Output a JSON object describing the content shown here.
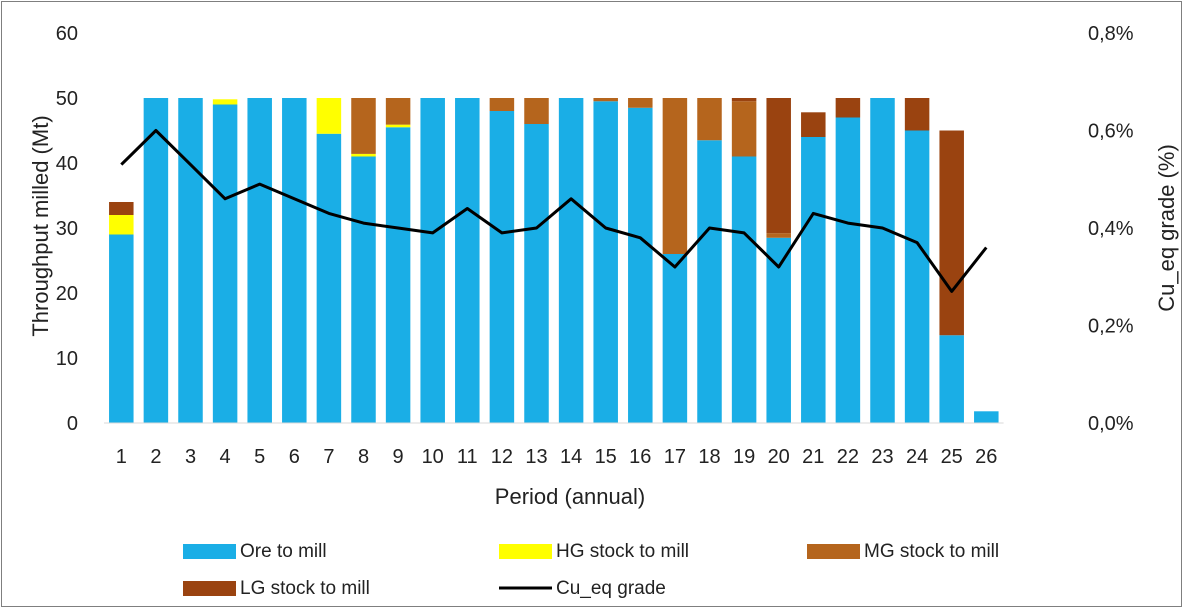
{
  "chart_data": {
    "type": "bar",
    "stacked": true,
    "title": "",
    "xlabel": "Period (annual)",
    "ylabel": "Throughput milled (Mt)",
    "y2label": "Cu_eq grade (%)",
    "ylim": [
      0,
      60
    ],
    "y2lim": [
      0,
      0.8
    ],
    "yticks": [
      "0",
      "10",
      "20",
      "30",
      "40",
      "50",
      "60"
    ],
    "y2ticks": [
      "0,0%",
      "0,2%",
      "0,4%",
      "0,6%",
      "0,8%"
    ],
    "categories": [
      "1",
      "2",
      "3",
      "4",
      "5",
      "6",
      "7",
      "8",
      "9",
      "10",
      "11",
      "12",
      "13",
      "14",
      "15",
      "16",
      "17",
      "18",
      "19",
      "20",
      "21",
      "22",
      "23",
      "24",
      "25",
      "26"
    ],
    "grid": false,
    "legend_position": "bottom",
    "series": [
      {
        "name": "Ore to mill",
        "color": "#1aaee6",
        "values": [
          29,
          50,
          50,
          49,
          50,
          50,
          44.5,
          41,
          45.5,
          50,
          50,
          48,
          46,
          50,
          49.5,
          48.5,
          26,
          43.5,
          41,
          28.5,
          44,
          47,
          50,
          45,
          13.5,
          1.8
        ]
      },
      {
        "name": "HG stock to mill",
        "color": "#ffff00",
        "values": [
          3,
          0,
          0,
          0.8,
          0,
          0,
          5.5,
          0.4,
          0.4,
          0,
          0,
          0,
          0,
          0,
          0,
          0,
          0,
          0,
          0,
          0,
          0,
          0,
          0,
          0,
          0,
          0
        ]
      },
      {
        "name": "MG stock to mill",
        "color": "#b5651d",
        "values": [
          0,
          0,
          0,
          0,
          0,
          0,
          0,
          8.6,
          4.1,
          0,
          0,
          2,
          4,
          0,
          0.5,
          1.5,
          24,
          6.5,
          8.5,
          0.7,
          0,
          0,
          0,
          0,
          0,
          0
        ]
      },
      {
        "name": "LG stock to mill",
        "color": "#9a4310",
        "values": [
          2,
          0,
          0,
          0,
          0,
          0,
          0,
          0,
          0,
          0,
          0,
          0,
          0,
          0,
          0,
          0,
          0,
          0,
          0.5,
          20.8,
          3.8,
          3,
          0,
          5,
          31.5,
          0
        ]
      }
    ],
    "line_series": {
      "name": "Cu_eq grade",
      "color": "#000000",
      "axis": "secondary",
      "values": [
        0.53,
        0.6,
        0.53,
        0.46,
        0.49,
        0.46,
        0.43,
        0.41,
        0.4,
        0.39,
        0.44,
        0.39,
        0.4,
        0.46,
        0.4,
        0.38,
        0.32,
        0.4,
        0.39,
        0.32,
        0.43,
        0.41,
        0.4,
        0.37,
        0.27,
        0.36
      ]
    }
  }
}
